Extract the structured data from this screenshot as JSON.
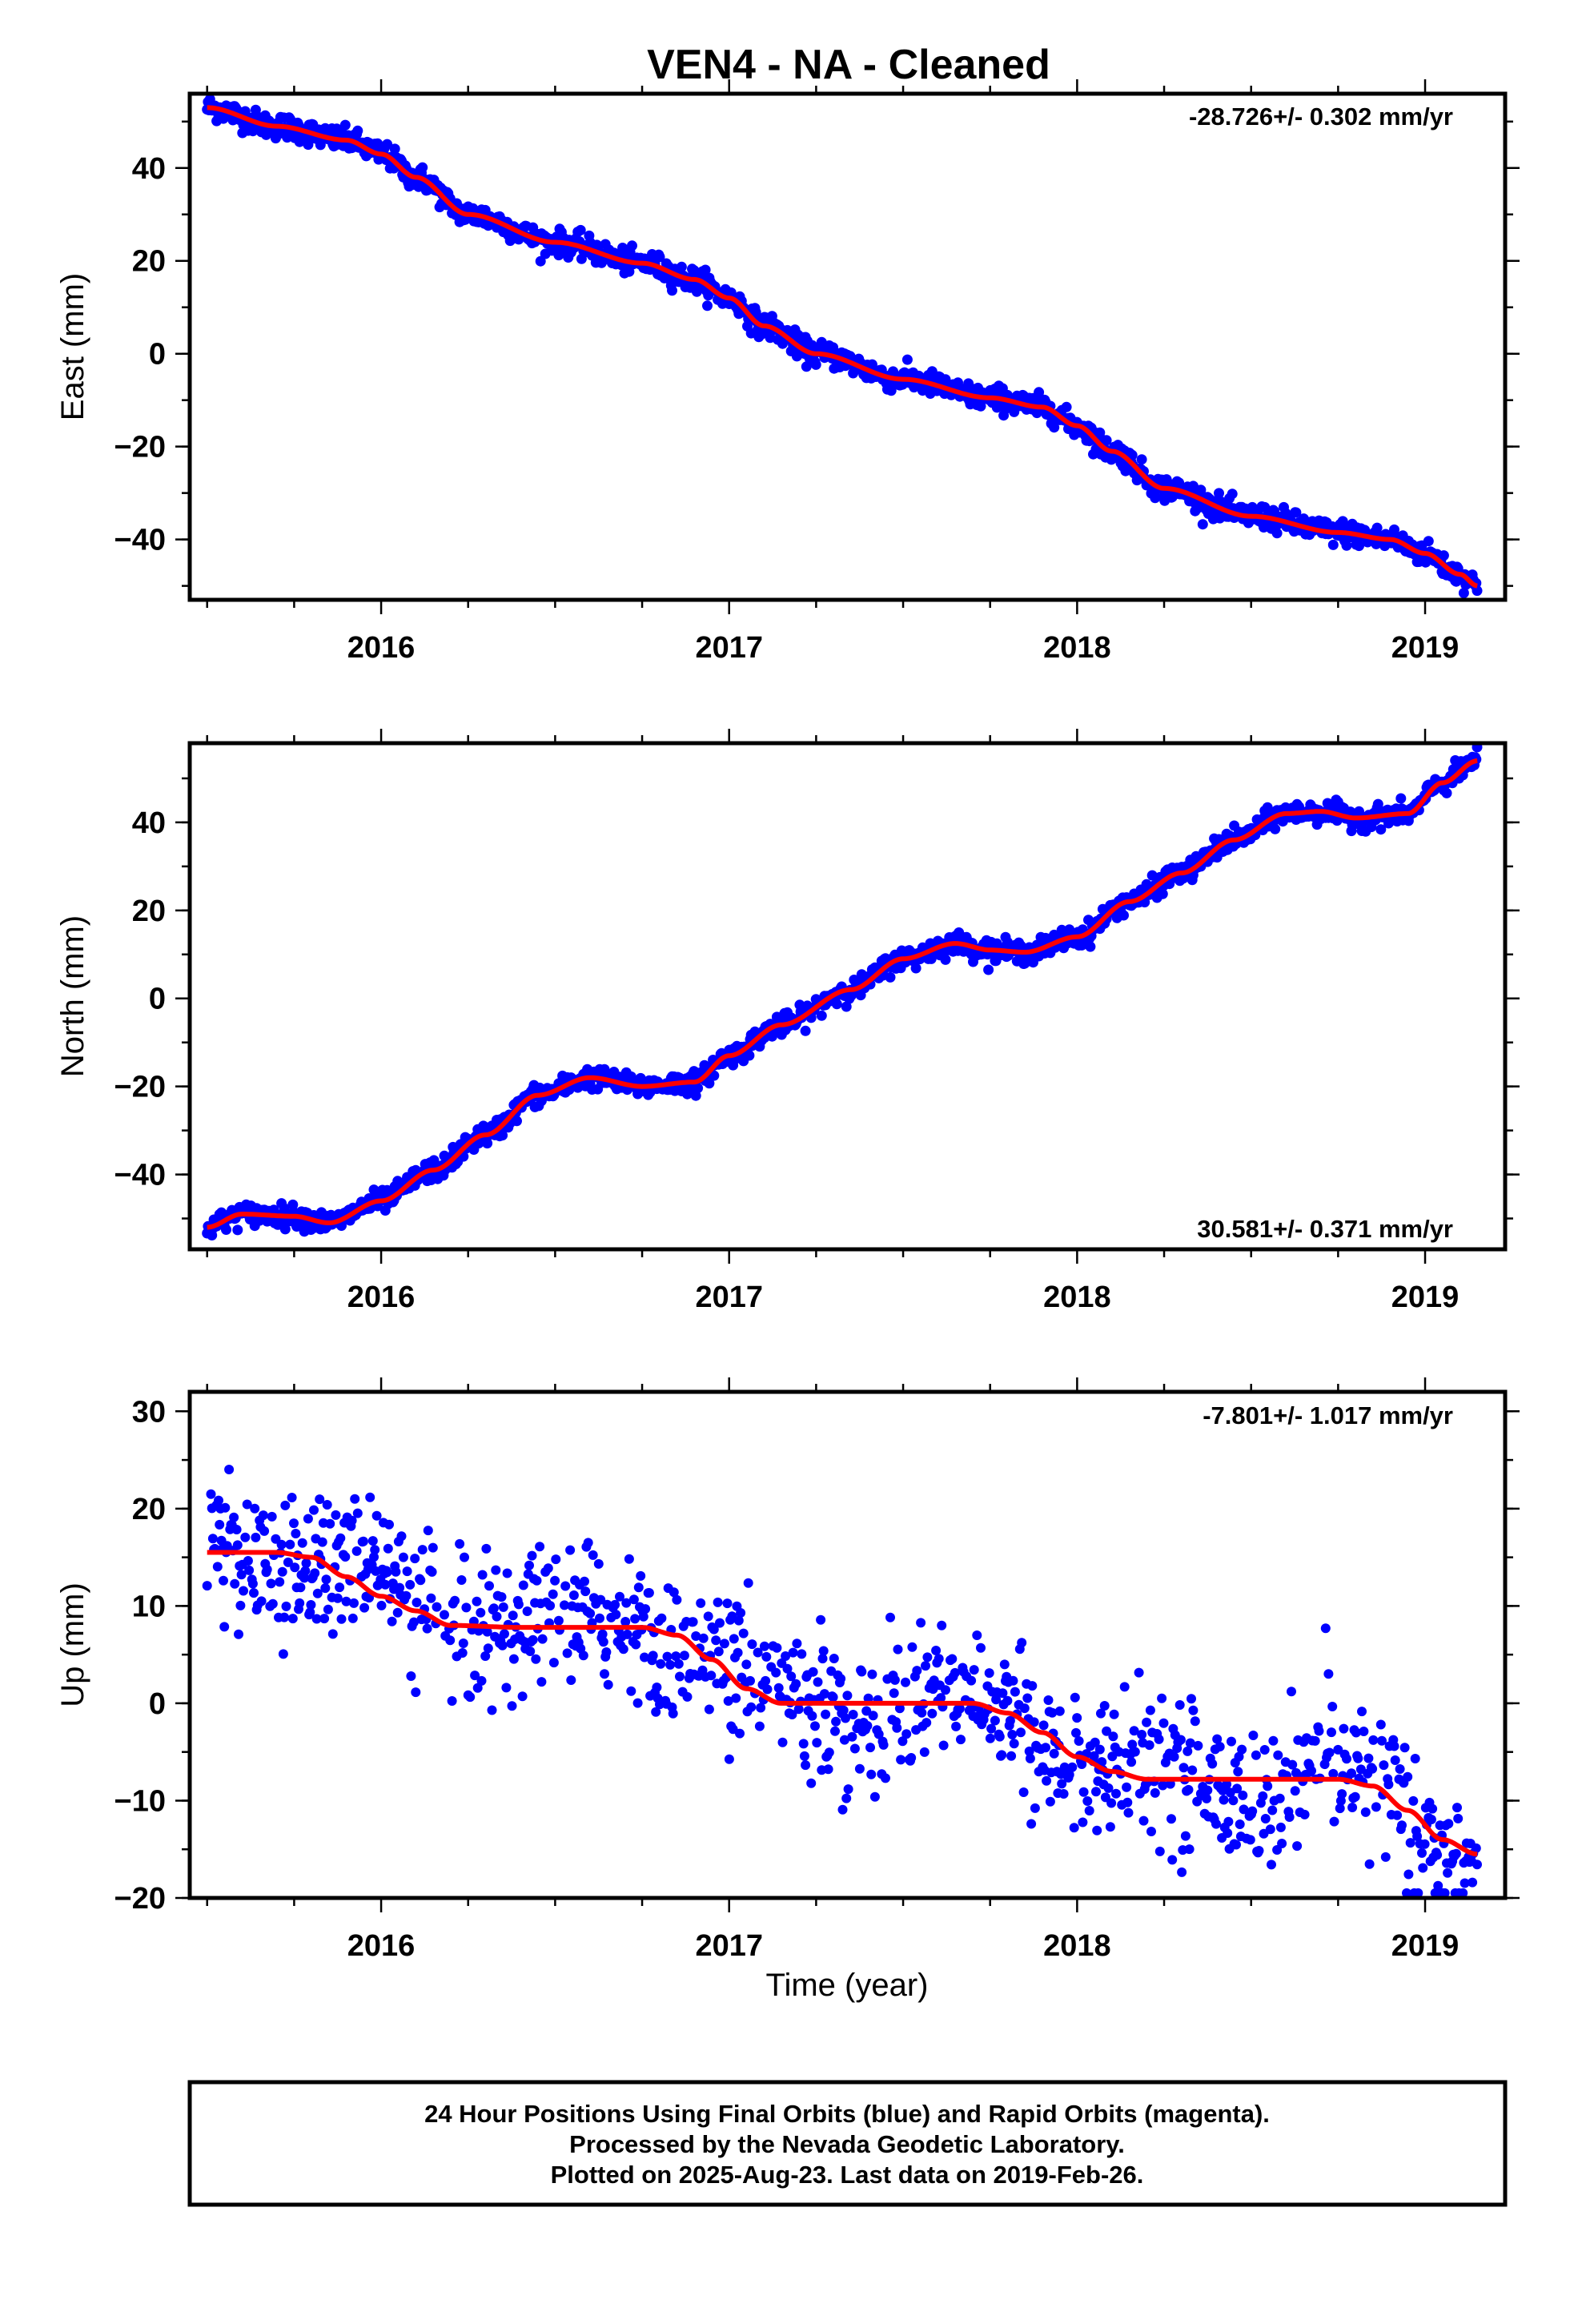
{
  "title": "VEN4  - NA - Cleaned",
  "colors": {
    "data": "#0000ff",
    "fit": "#ff0000",
    "frame": "#000000"
  },
  "chart_data": [
    {
      "type": "scatter",
      "ylabel": "East (mm)",
      "xlabel": "",
      "xlim": [
        2015.45,
        2019.23
      ],
      "ylim": [
        -53,
        56
      ],
      "xticks": [
        "2016",
        "2017",
        "2018",
        "2019"
      ],
      "yticks": [
        "40",
        "20",
        "0",
        "−20",
        "−40"
      ],
      "ytick_values": [
        40,
        20,
        0,
        -20,
        -40
      ],
      "rate_label": "-28.726+/- 0.302 mm/yr",
      "rate_position": "top-right",
      "fit_series": {
        "name": "",
        "x": [
          2015.5,
          2015.7,
          2015.9,
          2016.0,
          2016.1,
          2016.25,
          2016.5,
          2016.75,
          2016.9,
          2017.0,
          2017.1,
          2017.25,
          2017.5,
          2017.75,
          2017.9,
          2018.0,
          2018.1,
          2018.25,
          2018.5,
          2018.75,
          2018.9,
          2019.0,
          2019.1,
          2019.15
        ],
        "values": [
          53,
          49,
          46,
          43,
          38,
          30,
          24,
          19.5,
          16,
          12,
          6,
          0,
          -5.5,
          -9.5,
          -11.5,
          -15.5,
          -21,
          -29,
          -35,
          -38.5,
          -40,
          -43,
          -47.5,
          -50
        ]
      },
      "noise_mm": 1.3
    },
    {
      "type": "scatter",
      "ylabel": "North (mm)",
      "xlabel": "",
      "xlim": [
        2015.45,
        2019.23
      ],
      "ylim": [
        -57,
        58
      ],
      "xticks": [
        "2016",
        "2017",
        "2018",
        "2019"
      ],
      "yticks": [
        "40",
        "20",
        "0",
        "−20",
        "−40"
      ],
      "ytick_values": [
        40,
        20,
        0,
        -20,
        -40
      ],
      "rate_label": "30.581+/- 0.371 mm/yr",
      "rate_position": "bottom-right",
      "fit_series": {
        "name": "",
        "x": [
          2015.5,
          2015.6,
          2015.75,
          2015.85,
          2016.0,
          2016.15,
          2016.3,
          2016.45,
          2016.6,
          2016.75,
          2016.9,
          2017.0,
          2017.15,
          2017.35,
          2017.5,
          2017.65,
          2017.75,
          2017.85,
          2018.0,
          2018.15,
          2018.3,
          2018.45,
          2018.6,
          2018.7,
          2018.8,
          2018.95,
          2019.05,
          2019.15
        ],
        "values": [
          -52,
          -49,
          -49.5,
          -51,
          -46,
          -39,
          -31,
          -22,
          -18,
          -20,
          -19,
          -13,
          -6,
          2,
          9,
          12.5,
          11,
          10.5,
          14,
          22,
          28.5,
          36,
          42,
          42.5,
          41,
          42,
          49,
          54
        ]
      },
      "noise_mm": 1.2
    },
    {
      "type": "scatter",
      "ylabel": "Up (mm)",
      "xlabel": "Time (year)",
      "xlim": [
        2015.45,
        2019.23
      ],
      "ylim": [
        -20,
        32
      ],
      "xticks": [
        "2016",
        "2017",
        "2018",
        "2019"
      ],
      "yticks": [
        "30",
        "20",
        "10",
        "0",
        "−10",
        "−20"
      ],
      "ytick_values": [
        30,
        20,
        10,
        0,
        -10,
        -20
      ],
      "rate_label": "-7.801+/- 1.017 mm/yr",
      "rate_position": "top-right",
      "fit_series": {
        "name": "",
        "x": [
          2015.5,
          2015.7,
          2015.8,
          2015.9,
          2016.0,
          2016.1,
          2016.2,
          2016.4,
          2016.6,
          2016.75,
          2016.85,
          2016.95,
          2017.05,
          2017.15,
          2017.3,
          2017.5,
          2017.7,
          2017.8,
          2017.9,
          2018.0,
          2018.1,
          2018.2,
          2018.4,
          2018.6,
          2018.75,
          2018.85,
          2018.95,
          2019.05,
          2019.15
        ],
        "values": [
          15.5,
          15.5,
          15,
          13,
          11,
          9.5,
          8,
          7.8,
          7.8,
          7.8,
          7,
          4.5,
          1.5,
          0,
          0,
          0,
          0,
          -1,
          -3,
          -5.5,
          -7,
          -7.8,
          -7.8,
          -7.8,
          -7.8,
          -8.5,
          -11,
          -14,
          -15.5
        ]
      },
      "noise_mm": 3.6
    }
  ],
  "footer": {
    "line1": "24 Hour Positions Using Final Orbits (blue) and Rapid Orbits (magenta).",
    "line2": "Processed by the Nevada Geodetic Laboratory.",
    "line3": "Plotted on 2025-Aug-23. Last data on 2019-Feb-26."
  }
}
